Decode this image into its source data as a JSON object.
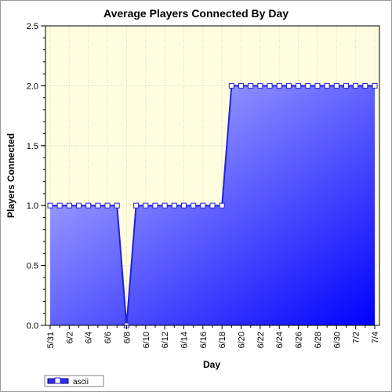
{
  "chart_data": {
    "type": "area",
    "title": "Average Players Connected By Day",
    "xlabel": "Day",
    "ylabel": "Players Connected",
    "ylim": [
      0,
      2.5
    ],
    "yticks": [
      "0.0",
      "0.5",
      "1.0",
      "1.5",
      "2.0",
      "2.5"
    ],
    "grid": true,
    "legend_position": "bottom-left",
    "categories": [
      "5/31",
      "6/1",
      "6/2",
      "6/3",
      "6/4",
      "6/5",
      "6/6",
      "6/7",
      "6/8",
      "6/9",
      "6/10",
      "6/11",
      "6/12",
      "6/13",
      "6/14",
      "6/15",
      "6/16",
      "6/17",
      "6/18",
      "6/19",
      "6/20",
      "6/21",
      "6/22",
      "6/23",
      "6/24",
      "6/25",
      "6/26",
      "6/27",
      "6/28",
      "6/29",
      "6/30",
      "7/1",
      "7/2",
      "7/3",
      "7/4"
    ],
    "x_tick_labels": [
      "5/31",
      "6/2",
      "6/4",
      "6/6",
      "6/8",
      "6/10",
      "6/12",
      "6/14",
      "6/16",
      "6/18",
      "6/20",
      "6/22",
      "6/24",
      "6/26",
      "6/28",
      "6/30",
      "7/2",
      "7/4"
    ],
    "series": [
      {
        "name": "ascii",
        "values": [
          1,
          1,
          1,
          1,
          1,
          1,
          1,
          1,
          0,
          1,
          1,
          1,
          1,
          1,
          1,
          1,
          1,
          1,
          1,
          2,
          2,
          2,
          2,
          2,
          2,
          2,
          2,
          2,
          2,
          2,
          2,
          2,
          2,
          2,
          2
        ]
      }
    ],
    "colors": {
      "plot_background": "#fffde0",
      "fill_light": "#c4c6ff",
      "fill_dark": "#0000ff",
      "line": "#2222dd",
      "grid": "#d8d8b0"
    }
  }
}
